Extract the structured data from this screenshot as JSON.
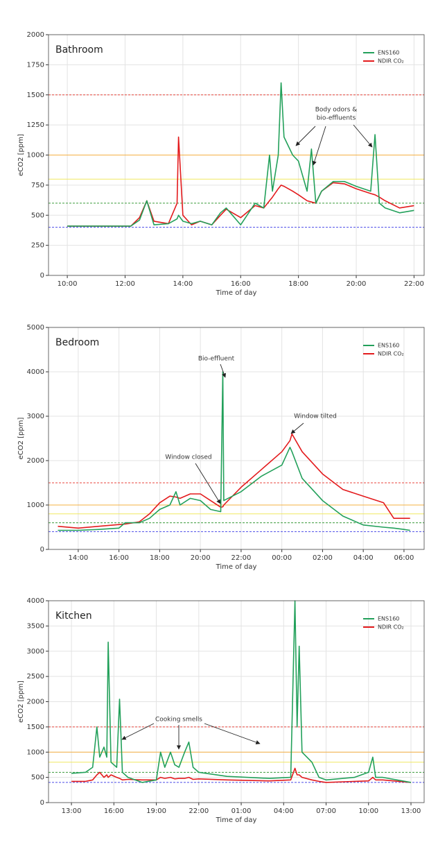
{
  "chart_data": [
    {
      "type": "line",
      "title": "Bathroom",
      "xlabel": "Time of day",
      "ylabel": "eCO2 [ppm]",
      "x": [
        10,
        12.2,
        12.5,
        12.75,
        13,
        13.5,
        13.8,
        13.85,
        14,
        14.3,
        14.6,
        15,
        15.3,
        15.5,
        16,
        16.5,
        16.8,
        17,
        17.1,
        17.3,
        17.4,
        17.5,
        17.8,
        18,
        18.3,
        18.45,
        18.6,
        18.8,
        19.2,
        19.6,
        20,
        20.5,
        20.65,
        20.8,
        21,
        21.5,
        22
      ],
      "series": [
        {
          "name": "ENS160",
          "color": "#22a05a",
          "values": [
            410,
            410,
            460,
            620,
            420,
            430,
            470,
            500,
            450,
            430,
            450,
            420,
            520,
            560,
            420,
            600,
            560,
            1000,
            700,
            1000,
            1600,
            1150,
            1000,
            950,
            700,
            1050,
            600,
            700,
            780,
            780,
            740,
            700,
            1170,
            600,
            560,
            520,
            540
          ]
        },
        {
          "name": "NDIR CO₂",
          "color": "#e31a1c",
          "values": [
            410,
            410,
            480,
            620,
            450,
            430,
            600,
            1150,
            500,
            420,
            450,
            420,
            500,
            550,
            480,
            580,
            560,
            620,
            650,
            720,
            750,
            740,
            700,
            670,
            620,
            610,
            600,
            700,
            770,
            760,
            720,
            680,
            670,
            650,
            620,
            560,
            580
          ]
        }
      ],
      "xlim": [
        9.35,
        22.35
      ],
      "xticks": [
        {
          "value": 10,
          "label": "10:00"
        },
        {
          "value": 12,
          "label": "12:00"
        },
        {
          "value": 14,
          "label": "14:00"
        },
        {
          "value": 16,
          "label": "16:00"
        },
        {
          "value": 18,
          "label": "18:00"
        },
        {
          "value": 20,
          "label": "20:00"
        },
        {
          "value": 22,
          "label": "22:00"
        }
      ],
      "ylim": [
        0,
        2000
      ],
      "yticks": [
        0,
        250,
        500,
        750,
        1000,
        1250,
        1500,
        1750,
        2000
      ],
      "grid": true,
      "legend": "upper right",
      "hlines": [
        {
          "value": 1500,
          "color": "#e8453c",
          "dashed": true
        },
        {
          "value": 1000,
          "color": "#f5b042",
          "dashed": false
        },
        {
          "value": 800,
          "color": "#f0e860",
          "dashed": false
        },
        {
          "value": 600,
          "color": "#3a9a3a",
          "dashed": true
        },
        {
          "value": 400,
          "color": "#4a4ae8",
          "dashed": true
        }
      ],
      "annotations": [
        {
          "lines": [
            "Body odors &",
            "bio-effluents"
          ]
        }
      ]
    },
    {
      "type": "line",
      "title": "Bedroom",
      "xlabel": "Time of day",
      "ylabel": "eCO2 [ppm]",
      "x": [
        13,
        14,
        15,
        16,
        16.3,
        17,
        17.5,
        18,
        18.5,
        18.8,
        19,
        19.5,
        20,
        20.5,
        21,
        21.1,
        21.15,
        22,
        23,
        24,
        24.4,
        24.5,
        25,
        26,
        27,
        28,
        29,
        29.5,
        30,
        30.3
      ],
      "series": [
        {
          "name": "ENS160",
          "color": "#22a05a",
          "values": [
            430,
            430,
            450,
            480,
            600,
            600,
            700,
            900,
            1000,
            1300,
            1000,
            1150,
            1100,
            900,
            850,
            4000,
            1100,
            1300,
            1650,
            1900,
            2300,
            2200,
            1600,
            1100,
            750,
            550,
            500,
            480,
            450,
            430
          ]
        },
        {
          "name": "NDIR CO₂",
          "color": "#e31a1c",
          "values": [
            520,
            480,
            520,
            560,
            570,
            620,
            800,
            1050,
            1200,
            1180,
            1150,
            1250,
            1250,
            1100,
            950,
            960,
            1000,
            1400,
            1800,
            2200,
            2450,
            2600,
            2200,
            1700,
            1350,
            1200,
            1050,
            700,
            700,
            700
          ]
        }
      ],
      "xlim": [
        12.54,
        30.99
      ],
      "xticks": [
        {
          "value": 14,
          "label": "14:00"
        },
        {
          "value": 16,
          "label": "16:00"
        },
        {
          "value": 18,
          "label": "18:00"
        },
        {
          "value": 20,
          "label": "20:00"
        },
        {
          "value": 22,
          "label": "22:00"
        },
        {
          "value": 24,
          "label": "00:00"
        },
        {
          "value": 26,
          "label": "02:00"
        },
        {
          "value": 28,
          "label": "04:00"
        },
        {
          "value": 30,
          "label": "06:00"
        }
      ],
      "ylim": [
        0,
        5000
      ],
      "yticks": [
        0,
        1000,
        2000,
        3000,
        4000,
        5000
      ],
      "grid": true,
      "legend": "upper right",
      "hlines": [
        {
          "value": 1500,
          "color": "#e8453c",
          "dashed": true
        },
        {
          "value": 1000,
          "color": "#f5b042",
          "dashed": false
        },
        {
          "value": 800,
          "color": "#f0e860",
          "dashed": false
        },
        {
          "value": 600,
          "color": "#3a9a3a",
          "dashed": true
        },
        {
          "value": 400,
          "color": "#4a4ae8",
          "dashed": true
        }
      ],
      "annotations": [
        {
          "lines": [
            "Bio-effluent"
          ]
        },
        {
          "lines": [
            "Window closed"
          ]
        },
        {
          "lines": [
            "Window tilted"
          ]
        }
      ]
    },
    {
      "type": "line",
      "title": "Kitchen",
      "xlabel": "Time of day",
      "ylabel": "eCO2 [ppm]",
      "x": [
        13,
        14,
        14.5,
        14.8,
        15,
        15.3,
        15.5,
        15.6,
        15.8,
        16.2,
        16.4,
        16.6,
        17,
        18,
        19,
        19.3,
        19.6,
        20,
        20.3,
        20.6,
        21,
        21.3,
        21.6,
        22,
        24,
        27,
        28.5,
        28.8,
        28.95,
        29.1,
        29.3,
        30,
        30.5,
        31,
        33,
        34,
        34.3,
        34.5,
        35,
        37
      ],
      "series": [
        {
          "name": "ENS160",
          "color": "#22a05a",
          "values": [
            580,
            600,
            700,
            1500,
            900,
            1100,
            900,
            3180,
            800,
            700,
            2050,
            600,
            500,
            400,
            450,
            1000,
            700,
            1000,
            750,
            700,
            1000,
            1200,
            700,
            600,
            520,
            480,
            500,
            4000,
            1500,
            3100,
            1000,
            800,
            500,
            450,
            500,
            600,
            900,
            500,
            500,
            400
          ]
        },
        {
          "name": "NDIR CO₂",
          "color": "#e31a1c",
          "values": [
            420,
            420,
            450,
            550,
            600,
            500,
            550,
            500,
            550,
            500,
            480,
            450,
            460,
            450,
            450,
            500,
            480,
            500,
            470,
            480,
            480,
            500,
            460,
            470,
            450,
            430,
            450,
            680,
            550,
            550,
            500,
            450,
            420,
            400,
            420,
            430,
            500,
            450,
            450,
            400
          ]
        }
      ],
      "xlim": [
        11.38,
        37.93
      ],
      "xticks": [
        {
          "value": 13,
          "label": "13:00"
        },
        {
          "value": 16,
          "label": "16:00"
        },
        {
          "value": 19,
          "label": "19:00"
        },
        {
          "value": 22,
          "label": "22:00"
        },
        {
          "value": 25,
          "label": "01:00"
        },
        {
          "value": 28,
          "label": "04:00"
        },
        {
          "value": 31,
          "label": "07:00"
        },
        {
          "value": 34,
          "label": "10:00"
        },
        {
          "value": 37,
          "label": "13:00"
        }
      ],
      "ylim": [
        0,
        4000
      ],
      "yticks": [
        0,
        500,
        1000,
        1500,
        2000,
        2500,
        3000,
        3500,
        4000
      ],
      "grid": true,
      "legend": "upper right",
      "hlines": [
        {
          "value": 1500,
          "color": "#e8453c",
          "dashed": true
        },
        {
          "value": 1000,
          "color": "#f5b042",
          "dashed": false
        },
        {
          "value": 800,
          "color": "#f0e860",
          "dashed": false
        },
        {
          "value": 600,
          "color": "#3a9a3a",
          "dashed": true
        },
        {
          "value": 400,
          "color": "#4a4ae8",
          "dashed": true
        }
      ],
      "annotations": [
        {
          "lines": [
            "Cooking smells"
          ]
        }
      ]
    }
  ]
}
